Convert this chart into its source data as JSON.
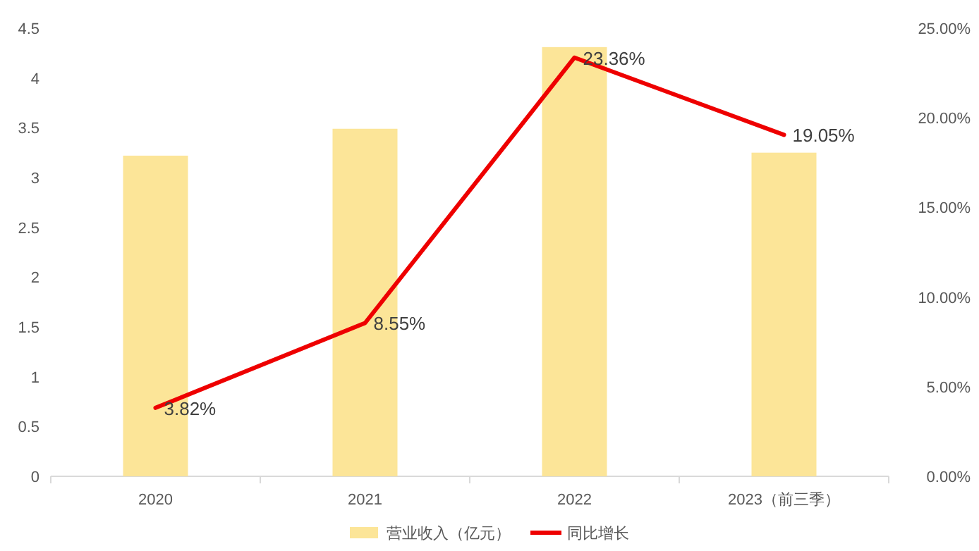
{
  "chart_data": {
    "type": "bar",
    "categories": [
      "2020",
      "2021",
      "2022",
      "2023（前三季）"
    ],
    "series": [
      {
        "name": "营业收入（亿元）",
        "color": "#fce598",
        "values": [
          3.22,
          3.49,
          4.31,
          3.25
        ]
      },
      {
        "name": "同比增长",
        "type": "line",
        "axis": "y2",
        "color": "#ee0000",
        "values": [
          3.82,
          8.55,
          23.36,
          19.05
        ],
        "value_labels": [
          "3.82%",
          "8.55%",
          "23.36%",
          "19.05%"
        ]
      }
    ],
    "ylim": [
      0,
      4.5
    ],
    "yticks": [
      0,
      0.5,
      1,
      1.5,
      2,
      2.5,
      3,
      3.5,
      4,
      4.5
    ],
    "y2lim": [
      0,
      25
    ],
    "y2ticks": [
      {
        "value": 0,
        "label": "0.00%"
      },
      {
        "value": 5,
        "label": "5.00%"
      },
      {
        "value": 10,
        "label": "10.00%"
      },
      {
        "value": 15,
        "label": "15.00%"
      },
      {
        "value": 20,
        "label": "20.00%"
      },
      {
        "value": 25,
        "label": "25.00%"
      }
    ],
    "legend": "bottom"
  }
}
